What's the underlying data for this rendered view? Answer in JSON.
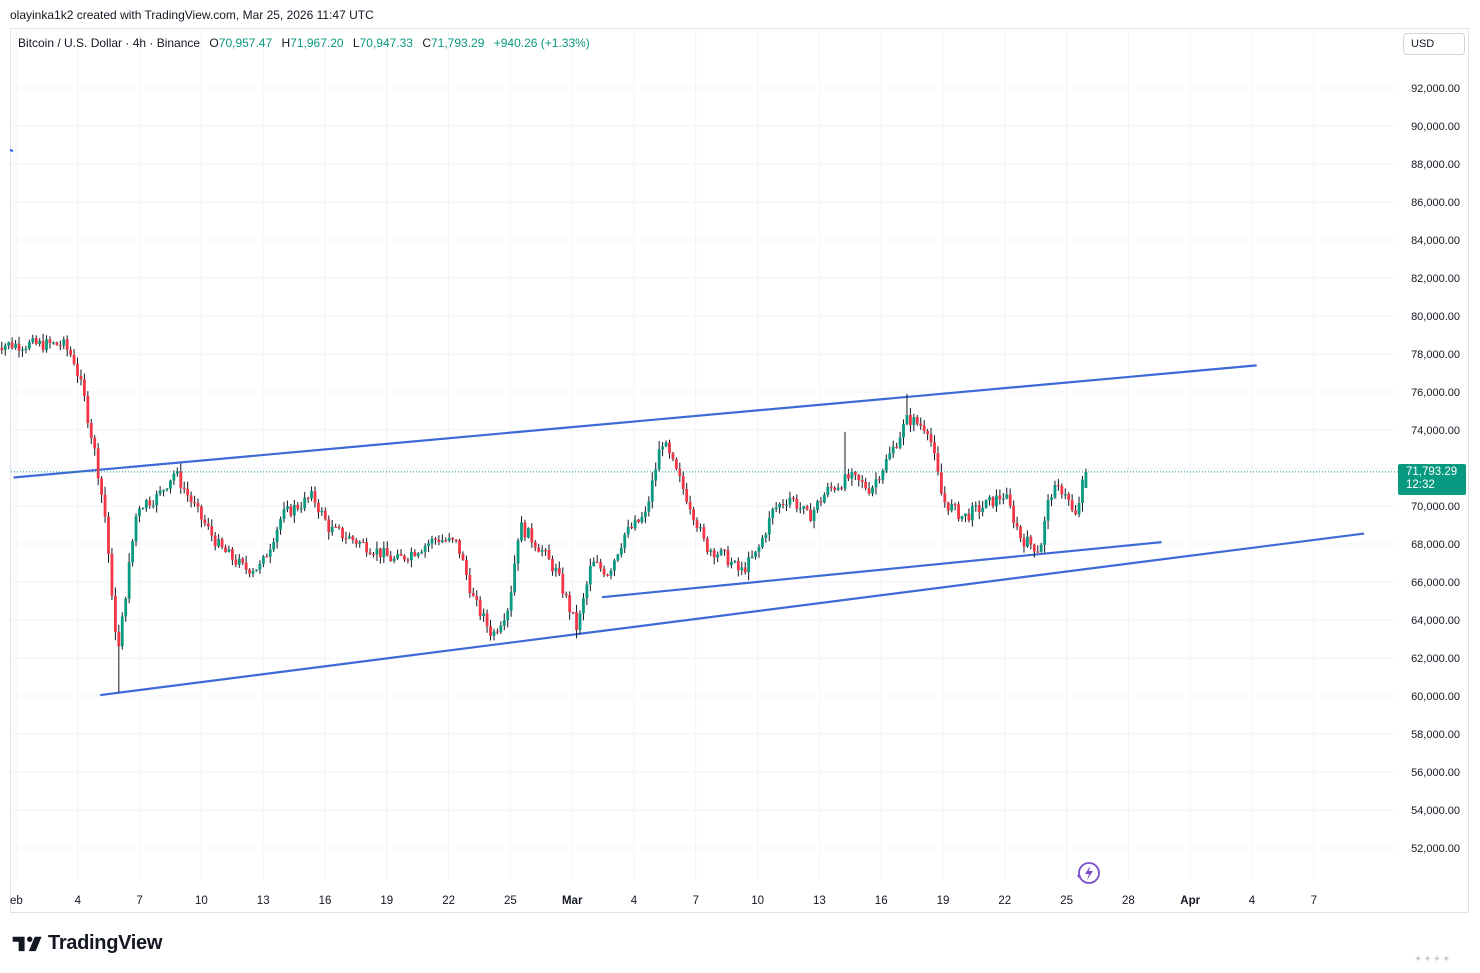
{
  "header": {
    "creator": "olayinka1k2 created with TradingView.com, Mar 25, 2026 11:47 UTC",
    "symbol": "Bitcoin / U.S. Dollar · 4h · Binance",
    "open_label": "O",
    "open": "70,957.47",
    "high_label": "H",
    "high": "71,967.20",
    "low_label": "L",
    "low": "70,947.33",
    "close_label": "C",
    "close": "71,793.29",
    "change": "+940.26 (+1.33%)"
  },
  "currency_button": "USD",
  "last_price": {
    "price": "71,793.29",
    "countdown": "12:32",
    "value": 71793.29
  },
  "brand": {
    "name": "TradingView",
    "logo_icon": "tradingview-logo-icon",
    "replay_icon": "replay-icon"
  },
  "colors": {
    "up": "#089981",
    "down": "#f23645",
    "trendline": "#2962ff",
    "grid": "#f0f3fa"
  },
  "chart_data": {
    "type": "candlestick",
    "title": "Bitcoin / U.S. Dollar · 4h · Binance",
    "ylim": [
      50800,
      94000
    ],
    "y_ticks": [
      "92,000.00",
      "90,000.00",
      "88,000.00",
      "86,000.00",
      "84,000.00",
      "82,000.00",
      "80,000.00",
      "78,000.00",
      "76,000.00",
      "74,000.00",
      "72,000.00",
      "70,000.00",
      "68,000.00",
      "66,000.00",
      "64,000.00",
      "62,000.00",
      "60,000.00",
      "58,000.00",
      "56,000.00",
      "54,000.00",
      "52,000.00"
    ],
    "x_ticks": [
      "eb",
      "4",
      "7",
      "10",
      "13",
      "16",
      "19",
      "22",
      "25",
      "Mar",
      "4",
      "7",
      "10",
      "13",
      "16",
      "19",
      "22",
      "25",
      "28",
      "Apr",
      "4",
      "7"
    ],
    "x_ticks_bold": [
      "Mar",
      "Apr"
    ],
    "grid": true,
    "anchors": [
      {
        "day": 2.6,
        "price": 78500
      },
      {
        "day": 3.4,
        "price": 78500
      },
      {
        "day": 3.9,
        "price": 77800
      },
      {
        "day": 4.4,
        "price": 75800
      },
      {
        "day": 5.0,
        "price": 72500
      },
      {
        "day": 5.5,
        "price": 69000
      },
      {
        "day": 5.8,
        "price": 64500
      },
      {
        "day": 6.1,
        "price": 62500
      },
      {
        "day": 6.5,
        "price": 66000
      },
      {
        "day": 7.0,
        "price": 70000
      },
      {
        "day": 8.0,
        "price": 70500
      },
      {
        "day": 8.8,
        "price": 71800
      },
      {
        "day": 10.0,
        "price": 69500
      },
      {
        "day": 11.0,
        "price": 67800
      },
      {
        "day": 12.2,
        "price": 66700
      },
      {
        "day": 13.0,
        "price": 66800
      },
      {
        "day": 14.0,
        "price": 69500
      },
      {
        "day": 15.5,
        "price": 70500
      },
      {
        "day": 16.3,
        "price": 68800
      },
      {
        "day": 17.5,
        "price": 68200
      },
      {
        "day": 18.5,
        "price": 67700
      },
      {
        "day": 19.5,
        "price": 67100
      },
      {
        "day": 20.5,
        "price": 67700
      },
      {
        "day": 21.5,
        "price": 68300
      },
      {
        "day": 22.5,
        "price": 68000
      },
      {
        "day": 23.3,
        "price": 65000
      },
      {
        "day": 24.2,
        "price": 63200
      },
      {
        "day": 25.0,
        "price": 64800
      },
      {
        "day": 25.5,
        "price": 69000
      },
      {
        "day": 26.5,
        "price": 67800
      },
      {
        "day": 27.3,
        "price": 66500
      },
      {
        "day": 28.3,
        "price": 63500
      },
      {
        "day": 29.0,
        "price": 67000
      },
      {
        "day": 29.8,
        "price": 66500
      },
      {
        "day": 30.6,
        "price": 68500
      },
      {
        "day": 31.6,
        "price": 69500
      },
      {
        "day": 32.4,
        "price": 73500
      },
      {
        "day": 33.0,
        "price": 72000
      },
      {
        "day": 33.8,
        "price": 70000
      },
      {
        "day": 34.5,
        "price": 67900
      },
      {
        "day": 35.5,
        "price": 67300
      },
      {
        "day": 36.2,
        "price": 66500
      },
      {
        "day": 37.0,
        "price": 67500
      },
      {
        "day": 37.8,
        "price": 69800
      },
      {
        "day": 38.6,
        "price": 70500
      },
      {
        "day": 39.5,
        "price": 69400
      },
      {
        "day": 40.4,
        "price": 70800
      },
      {
        "day": 41.5,
        "price": 71500
      },
      {
        "day": 42.5,
        "price": 70900
      },
      {
        "day": 43.5,
        "price": 72800
      },
      {
        "day": 44.3,
        "price": 74600
      },
      {
        "day": 45.3,
        "price": 74100
      },
      {
        "day": 46.0,
        "price": 70300
      },
      {
        "day": 47.0,
        "price": 69400
      },
      {
        "day": 48.0,
        "price": 70000
      },
      {
        "day": 49.0,
        "price": 70600
      },
      {
        "day": 49.8,
        "price": 68300
      },
      {
        "day": 50.7,
        "price": 67700
      },
      {
        "day": 51.2,
        "price": 70700
      },
      {
        "day": 51.9,
        "price": 70900
      },
      {
        "day": 52.4,
        "price": 69200
      },
      {
        "day": 52.9,
        "price": 71800
      }
    ],
    "trendlines": [
      {
        "name": "upper-channel",
        "p1": {
          "day": 1.0,
          "price": 71500
        },
        "p2": {
          "day": 61.2,
          "price": 77400
        }
      },
      {
        "name": "lower-channel",
        "p1": {
          "day": 5.2,
          "price": 60050
        },
        "p2": {
          "day": 66.4,
          "price": 68550
        }
      },
      {
        "name": "inner-support",
        "p1": {
          "day": 29.5,
          "price": 65200
        },
        "p2": {
          "day": 56.6,
          "price": 68100
        }
      }
    ],
    "last_price_line": 71793.29
  }
}
